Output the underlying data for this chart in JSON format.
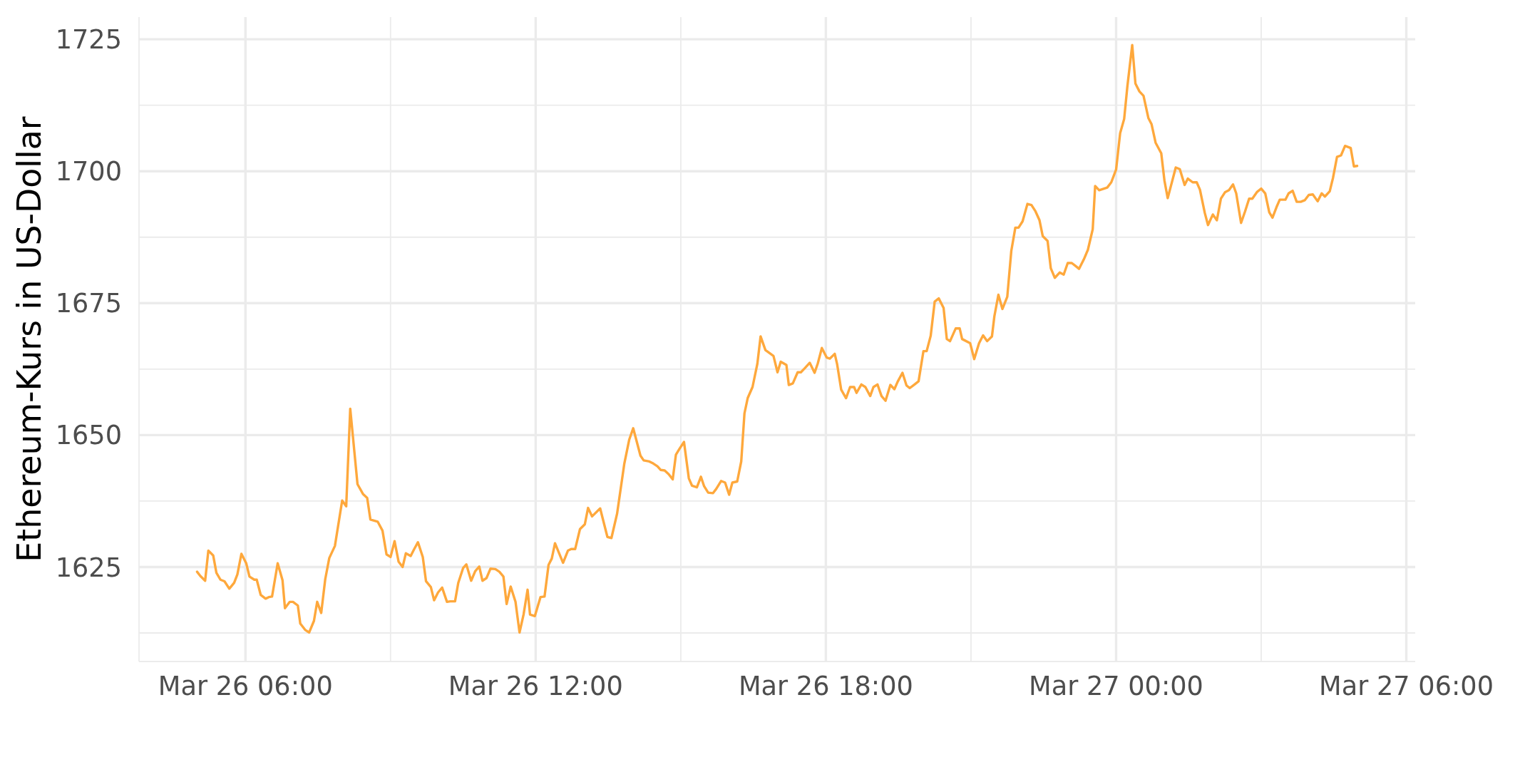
{
  "chart_data": {
    "type": "line",
    "ylabel": "Ethereum-Kurs in US-Dollar",
    "color": "#fea83c",
    "marker": "none",
    "line_style": "solid",
    "grid": true,
    "x": [
      "--03-26T05:00",
      "--03-26T05:04",
      "--03-26T05:10",
      "--03-26T05:14",
      "--03-26T05:20",
      "--03-26T05:24",
      "--03-26T05:29",
      "--03-26T05:34",
      "--03-26T05:40",
      "--03-26T05:46",
      "--03-26T05:50",
      "--03-26T05:55",
      "--03-26T06:01",
      "--03-26T06:05",
      "--03-26T06:11",
      "--03-26T06:14",
      "--03-26T06:19",
      "--03-26T06:25",
      "--03-26T06:29",
      "--03-26T06:33",
      "--03-26T06:40",
      "--03-26T06:46",
      "--03-26T06:49",
      "--03-26T06:55",
      "--03-26T06:59",
      "--03-26T07:05",
      "--03-26T07:08",
      "--03-26T07:14",
      "--03-26T07:19",
      "--03-26T07:25",
      "--03-26T07:29",
      "--03-26T07:34",
      "--03-26T07:39",
      "--03-26T07:44",
      "--03-26T07:51",
      "--03-26T08:00",
      "--03-26T08:05",
      "--03-26T08:10",
      "--03-26T08:19",
      "--03-26T08:26",
      "--03-26T08:31",
      "--03-26T08:35",
      "--03-26T08:44",
      "--03-26T08:50",
      "--03-26T08:55",
      "--03-26T09:00",
      "--03-26T09:05",
      "--03-26T09:10",
      "--03-26T09:15",
      "--03-26T09:19",
      "--03-26T09:25",
      "--03-26T09:29",
      "--03-26T09:34",
      "--03-26T09:40",
      "--03-26T09:44",
      "--03-26T09:50",
      "--03-26T09:54",
      "--03-26T09:59",
      "--03-26T10:04",
      "--03-26T10:10",
      "--03-26T10:14",
      "--03-26T10:20",
      "--03-26T10:24",
      "--03-26T10:30",
      "--03-26T10:34",
      "--03-26T10:40",
      "--03-26T10:45",
      "--03-26T10:50",
      "--03-26T10:54",
      "--03-26T10:59",
      "--03-26T11:04",
      "--03-26T11:10",
      "--03-26T11:15",
      "--03-26T11:20",
      "--03-26T11:24",
      "--03-26T11:29",
      "--03-26T11:35",
      "--03-26T11:40",
      "--03-26T11:45",
      "--03-26T11:50",
      "--03-26T11:53",
      "--03-26T11:59",
      "--03-26T12:06",
      "--03-26T12:11",
      "--03-26T12:16",
      "--03-26T12:20",
      "--03-26T12:24",
      "--03-26T12:34",
      "--03-26T12:40",
      "--03-26T12:44",
      "--03-26T12:49",
      "--03-26T12:55",
      "--03-26T13:01",
      "--03-26T13:05",
      "--03-26T13:10",
      "--03-26T13:20",
      "--03-26T13:29",
      "--03-26T13:34",
      "--03-26T13:41",
      "--03-26T13:50",
      "--03-26T13:56",
      "--03-26T14:01",
      "--03-26T14:10",
      "--03-26T14:14",
      "--03-26T14:21",
      "--03-26T14:26",
      "--03-26T14:31",
      "--03-26T14:35",
      "--03-26T14:40",
      "--03-26T14:45",
      "--03-26T14:50",
      "--03-26T14:54",
      "--03-26T14:58",
      "--03-26T15:04",
      "--03-26T15:10",
      "--03-26T15:14",
      "--03-26T15:20",
      "--03-26T15:25",
      "--03-26T15:29",
      "--03-26T15:34",
      "--03-26T15:40",
      "--03-26T15:44",
      "--03-26T15:50",
      "--03-26T15:55",
      "--03-26T16:00",
      "--03-26T16:04",
      "--03-26T16:10",
      "--03-26T16:15",
      "--03-26T16:19",
      "--03-26T16:23",
      "--03-26T16:29",
      "--03-26T16:35",
      "--03-26T16:39",
      "--03-26T16:45",
      "--03-26T16:55",
      "--03-26T17:00",
      "--03-26T17:04",
      "--03-26T17:11",
      "--03-26T17:14",
      "--03-26T17:19",
      "--03-26T17:25",
      "--03-26T17:29",
      "--03-26T17:34",
      "--03-26T17:40",
      "--03-26T17:46",
      "--03-26T17:50",
      "--03-26T17:55",
      "--03-26T18:01",
      "--03-26T18:05",
      "--03-26T18:11",
      "--03-26T18:14",
      "--03-26T18:19",
      "--03-26T18:25",
      "--03-26T18:30",
      "--03-26T18:35",
      "--03-26T18:38",
      "--03-26T18:44",
      "--03-26T18:49",
      "--03-26T18:55",
      "--03-26T18:59",
      "--03-26T19:04",
      "--03-26T19:09",
      "--03-26T19:14",
      "--03-26T19:20",
      "--03-26T19:25",
      "--03-26T19:29",
      "--03-26T19:35",
      "--03-26T19:40",
      "--03-26T19:44",
      "--03-26T19:50",
      "--03-26T19:55",
      "--03-26T20:01",
      "--03-26T20:05",
      "--03-26T20:10",
      "--03-26T20:15",
      "--03-26T20:20",
      "--03-26T20:26",
      "--03-26T20:30",
      "--03-26T20:34",
      "--03-26T20:41",
      "--03-26T20:46",
      "--03-26T20:49",
      "--03-26T20:59",
      "--03-26T21:04",
      "--03-26T21:10",
      "--03-26T21:15",
      "--03-26T21:20",
      "--03-26T21:26",
      "--03-26T21:29",
      "--03-26T21:34",
      "--03-26T21:39",
      "--03-26T21:45",
      "--03-26T21:50",
      "--03-26T21:55",
      "--03-26T21:59",
      "--03-26T22:04",
      "--03-26T22:10",
      "--03-26T22:15",
      "--03-26T22:20",
      "--03-26T22:25",
      "--03-26T22:29",
      "--03-26T22:35",
      "--03-26T22:39",
      "--03-26T22:44",
      "--03-26T22:50",
      "--03-26T22:55",
      "--03-26T23:00",
      "--03-26T23:05",
      "--03-26T23:10",
      "--03-26T23:14",
      "--03-26T23:20",
      "--03-26T23:25",
      "--03-26T23:31",
      "--03-26T23:34",
      "--03-26T23:39",
      "--03-26T23:49",
      "--03-26T23:54",
      "--03-27T00:00",
      "--03-27T00:05",
      "--03-27T00:10",
      "--03-27T00:14",
      "--03-27T00:20",
      "--03-27T00:24",
      "--03-27T00:29",
      "--03-27T00:34",
      "--03-27T00:40",
      "--03-27T00:44",
      "--03-27T00:49",
      "--03-27T00:56",
      "--03-27T01:00",
      "--03-27T01:04",
      "--03-27T01:08",
      "--03-27T01:14",
      "--03-27T01:19",
      "--03-27T01:25",
      "--03-27T01:29",
      "--03-27T01:35",
      "--03-27T01:40",
      "--03-27T01:44",
      "--03-27T01:50",
      "--03-27T01:54",
      "--03-27T02:00",
      "--03-27T02:05",
      "--03-27T02:10",
      "--03-27T02:15",
      "--03-27T02:20",
      "--03-27T02:25",
      "--03-27T02:29",
      "--03-27T02:35",
      "--03-27T02:40",
      "--03-27T02:45",
      "--03-27T02:49",
      "--03-27T02:55",
      "--03-27T03:00",
      "--03-27T03:05",
      "--03-27T03:10",
      "--03-27T03:14",
      "--03-27T03:19",
      "--03-27T03:23",
      "--03-27T03:30",
      "--03-27T03:34",
      "--03-27T03:39",
      "--03-27T03:44",
      "--03-27T03:49",
      "--03-27T03:54",
      "--03-27T03:59",
      "--03-27T04:04",
      "--03-27T04:10",
      "--03-27T04:15",
      "--03-27T04:19",
      "--03-27T04:25",
      "--03-27T04:29",
      "--03-27T04:34",
      "--03-27T04:39",
      "--03-27T04:44",
      "--03-27T04:51",
      "--03-27T04:55",
      "--03-27T04:59"
    ],
    "values": [
      1624.1,
      1623.3,
      1622.4,
      1628.1,
      1627.2,
      1623.9,
      1622.6,
      1622.3,
      1620.9,
      1622.0,
      1623.6,
      1627.5,
      1625.7,
      1623.2,
      1622.6,
      1622.6,
      1619.7,
      1619.0,
      1619.3,
      1619.4,
      1625.7,
      1622.5,
      1617.2,
      1618.4,
      1618.4,
      1617.7,
      1614.3,
      1613.1,
      1612.6,
      1614.8,
      1618.4,
      1616.3,
      1622.7,
      1626.7,
      1629.0,
      1637.6,
      1636.5,
      1655.0,
      1640.7,
      1638.8,
      1638.1,
      1634.0,
      1633.6,
      1631.9,
      1627.4,
      1626.9,
      1629.9,
      1626.0,
      1625.0,
      1627.6,
      1627.1,
      1628.3,
      1629.7,
      1626.9,
      1622.3,
      1621.2,
      1618.7,
      1620.2,
      1621.1,
      1618.4,
      1618.5,
      1618.5,
      1622.0,
      1624.8,
      1625.5,
      1622.4,
      1624.2,
      1625.1,
      1622.4,
      1622.9,
      1624.7,
      1624.6,
      1624.1,
      1623.2,
      1618.0,
      1621.3,
      1618.4,
      1612.6,
      1616.0,
      1620.7,
      1616.0,
      1615.7,
      1619.3,
      1619.4,
      1625.4,
      1626.6,
      1629.5,
      1625.8,
      1628.1,
      1628.4,
      1628.4,
      1632.2,
      1633.1,
      1636.2,
      1634.6,
      1636.1,
      1630.7,
      1630.5,
      1635.1,
      1644.6,
      1649.1,
      1651.3,
      1646.1,
      1645.2,
      1645.0,
      1644.6,
      1644.1,
      1643.4,
      1643.3,
      1642.6,
      1641.6,
      1646.3,
      1647.3,
      1648.7,
      1641.8,
      1640.4,
      1640.1,
      1642.1,
      1640.3,
      1639.1,
      1639.0,
      1639.8,
      1641.3,
      1641.0,
      1638.7,
      1641.0,
      1641.2,
      1645.0,
      1654.1,
      1657.0,
      1659.1,
      1663.5,
      1668.7,
      1666.1,
      1665.0,
      1661.9,
      1663.9,
      1663.3,
      1659.5,
      1659.8,
      1661.9,
      1661.9,
      1662.7,
      1663.7,
      1661.8,
      1663.6,
      1666.5,
      1664.7,
      1664.5,
      1665.4,
      1663.4,
      1658.6,
      1657.0,
      1659.1,
      1659.1,
      1658.0,
      1659.6,
      1659.1,
      1657.4,
      1659.1,
      1659.6,
      1657.4,
      1656.5,
      1659.5,
      1658.7,
      1660.1,
      1661.8,
      1659.4,
      1658.9,
      1659.6,
      1660.2,
      1665.9,
      1665.9,
      1668.8,
      1675.3,
      1675.9,
      1674.1,
      1668.2,
      1667.8,
      1670.2,
      1670.2,
      1668.2,
      1667.4,
      1664.4,
      1667.4,
      1668.9,
      1667.8,
      1668.7,
      1672.5,
      1676.6,
      1673.9,
      1676.2,
      1684.9,
      1689.3,
      1689.3,
      1690.5,
      1693.8,
      1693.6,
      1692.4,
      1690.7,
      1687.7,
      1686.8,
      1681.6,
      1679.8,
      1680.8,
      1680.4,
      1682.6,
      1682.6,
      1682.0,
      1681.5,
      1683.3,
      1685.1,
      1689.0,
      1697.2,
      1696.4,
      1696.9,
      1697.9,
      1700.3,
      1707.2,
      1709.9,
      1716.1,
      1723.9,
      1716.6,
      1715.1,
      1714.3,
      1710.1,
      1708.9,
      1705.4,
      1703.4,
      1698.2,
      1694.9,
      1697.2,
      1700.7,
      1700.4,
      1697.4,
      1698.6,
      1697.9,
      1697.9,
      1696.5,
      1692.1,
      1689.8,
      1691.8,
      1690.7,
      1694.8,
      1696.0,
      1696.4,
      1697.5,
      1695.8,
      1690.2,
      1692.4,
      1694.8,
      1694.8,
      1696.1,
      1696.7,
      1695.8,
      1692.2,
      1691.2,
      1693.2,
      1694.6,
      1694.6,
      1695.8,
      1696.3,
      1694.2,
      1694.2,
      1694.5,
      1695.5,
      1695.6,
      1694.3,
      1695.8,
      1695.2,
      1696.2,
      1698.7,
      1702.7,
      1703.0,
      1704.8,
      1704.4,
      1700.9,
      1701.0
    ],
    "xlim": [
      "--03-26T03:48",
      "--03-27T06:11"
    ],
    "ylim": [
      1607.1,
      1729.2
    ],
    "xticks": [
      {
        "value": "--03-26T06:00",
        "label": "Mar 26 06:00"
      },
      {
        "value": "--03-26T09:00",
        "label": null
      },
      {
        "value": "--03-26T12:00",
        "label": "Mar 26 12:00"
      },
      {
        "value": "--03-26T15:00",
        "label": null
      },
      {
        "value": "--03-26T18:00",
        "label": "Mar 26 18:00"
      },
      {
        "value": "--03-26T21:00",
        "label": null
      },
      {
        "value": "--03-27T00:00",
        "label": "Mar 27 00:00"
      },
      {
        "value": "--03-27T03:00",
        "label": null
      },
      {
        "value": "--03-27T06:00",
        "label": "Mar 27 06:00"
      }
    ],
    "yticks": [
      {
        "value": 1612.5,
        "label": null
      },
      1625,
      {
        "value": 1637.5,
        "label": null
      },
      1650,
      {
        "value": 1662.5,
        "label": null
      },
      1675,
      {
        "value": 1687.5,
        "label": null
      },
      1700,
      {
        "value": 1712.5,
        "label": null
      },
      1725
    ]
  }
}
